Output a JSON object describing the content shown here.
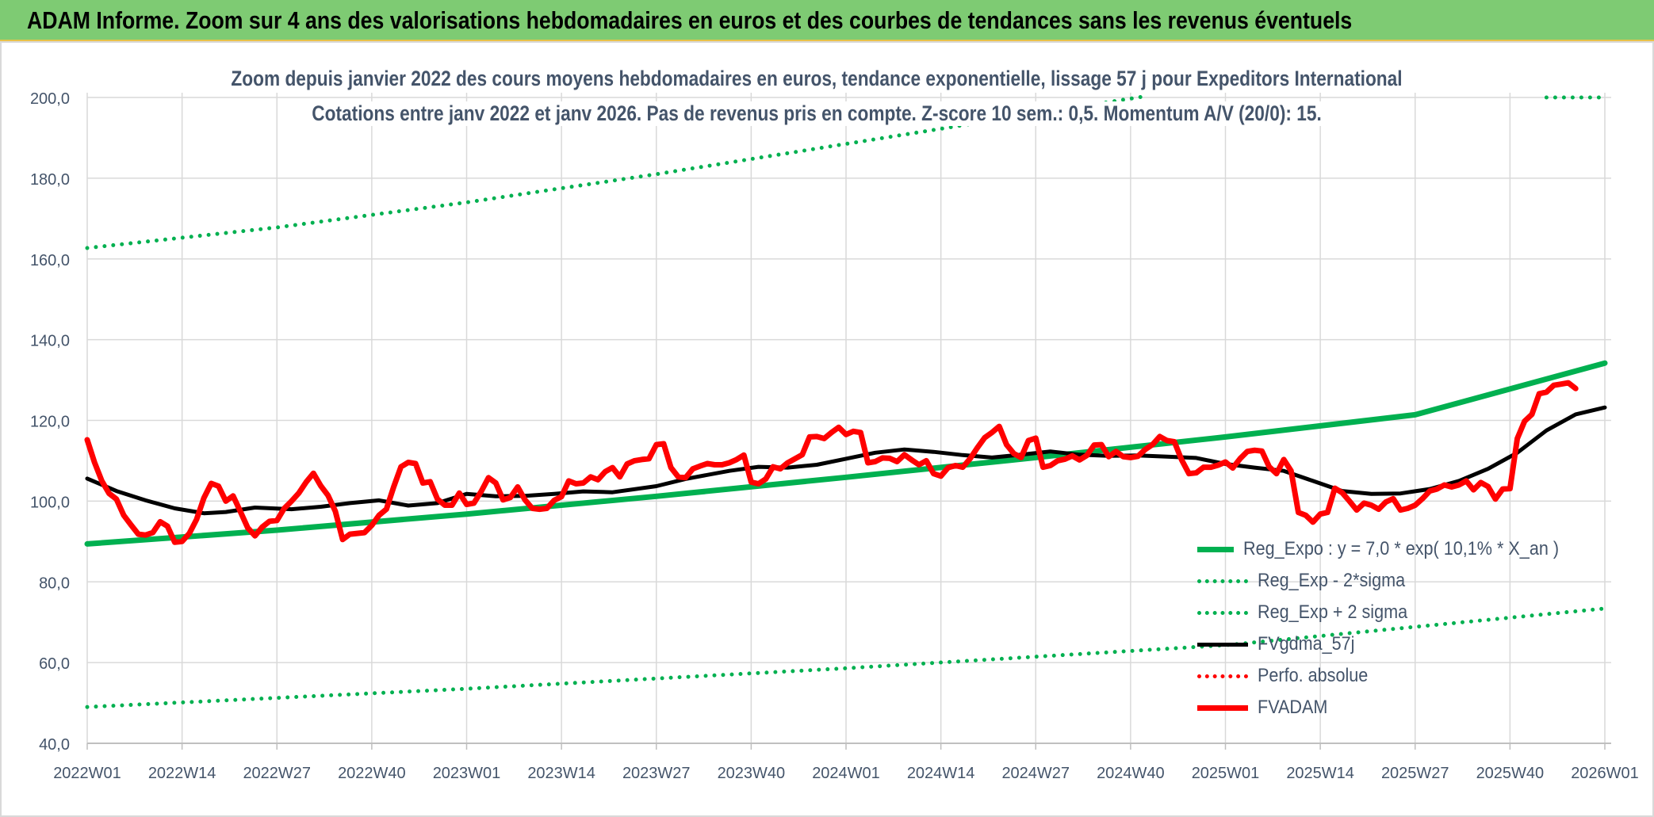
{
  "banner": {
    "title": "ADAM Informe. Zoom sur 4 ans des valorisations hebdomadaires en euros et des courbes de tendances sans les revenus éventuels"
  },
  "colors": {
    "banner_bg": "#7ecb73",
    "reg_expo": "#00b050",
    "fvgdma": "#000000",
    "perfo": "#ff0000",
    "fvadam": "#ff0000",
    "axis_text": "#44546a",
    "grid": "#d9d9d9"
  },
  "chart_data": {
    "type": "line",
    "title": "Zoom depuis janvier 2022 des cours moyens hebdomadaires en euros, tendance exponentielle, lissage 57 j pour Expeditors International",
    "subtitle": "Cotations entre janv 2022 et janv 2026. Pas de revenus pris en compte. Z-score 10 sem.: 0,5. Momentum A/V (20/0): 15.",
    "x_tick_labels": [
      "2022W01",
      "2022W14",
      "2022W27",
      "2022W40",
      "2023W01",
      "2023W14",
      "2023W27",
      "2023W40",
      "2024W01",
      "2024W14",
      "2024W27",
      "2024W40",
      "2025W01",
      "2025W14",
      "2025W27",
      "2025W40",
      "2026W01"
    ],
    "y_tick_labels": [
      "40,0",
      "60,0",
      "80,0",
      "100,0",
      "120,0",
      "140,0",
      "160,0",
      "180,0",
      "200,0"
    ],
    "ylim": [
      40,
      200
    ],
    "x_range_weeks": [
      0,
      208
    ],
    "grid": true,
    "legend_position": "bottom-right",
    "series": [
      {
        "name": "Reg_Expo : y = 7,0 * exp( 10,1% *  X_an )",
        "style": "solid-thick",
        "color": "#00b050",
        "points": [
          [
            0,
            89.4
          ],
          [
            26,
            92.8
          ],
          [
            52,
            96.8
          ],
          [
            78,
            101.2
          ],
          [
            104,
            105.9
          ],
          [
            130,
            110.8
          ],
          [
            156,
            115.9
          ],
          [
            182,
            121.4
          ],
          [
            208,
            134.2
          ]
        ]
      },
      {
        "name": "Reg_Exp - 2*sigma",
        "style": "dotted",
        "color": "#00b050",
        "points": [
          [
            0,
            49.0
          ],
          [
            52,
            53.5
          ],
          [
            104,
            58.6
          ],
          [
            156,
            64.3
          ],
          [
            208,
            73.4
          ]
        ]
      },
      {
        "name": "Reg_Exp + 2 sigma",
        "style": "dotted",
        "color": "#00b050",
        "points": [
          [
            0,
            162.7
          ],
          [
            26,
            167.8
          ],
          [
            52,
            174.0
          ],
          [
            78,
            181.0
          ],
          [
            104,
            188.5
          ],
          [
            130,
            196.0
          ],
          [
            145,
            200.5
          ]
        ],
        "points_right": [
          [
            200,
            200.0
          ],
          [
            208,
            200.0
          ]
        ]
      },
      {
        "name": "FVgdma_57j",
        "style": "solid",
        "color": "#000000",
        "points": [
          [
            0,
            105.6
          ],
          [
            4,
            102.5
          ],
          [
            8,
            100.2
          ],
          [
            12,
            98.2
          ],
          [
            16,
            97.0
          ],
          [
            19,
            97.3
          ],
          [
            23,
            98.4
          ],
          [
            28,
            98.0
          ],
          [
            32,
            98.6
          ],
          [
            36,
            99.5
          ],
          [
            40,
            100.2
          ],
          [
            44,
            98.9
          ],
          [
            48,
            99.5
          ],
          [
            52,
            101.8
          ],
          [
            56,
            101.2
          ],
          [
            60,
            101.3
          ],
          [
            64,
            101.8
          ],
          [
            68,
            102.4
          ],
          [
            72,
            102.2
          ],
          [
            78,
            103.7
          ],
          [
            82,
            105.5
          ],
          [
            88,
            107.5
          ],
          [
            92,
            108.5
          ],
          [
            96,
            108.3
          ],
          [
            100,
            109.0
          ],
          [
            104,
            110.5
          ],
          [
            108,
            112.0
          ],
          [
            112,
            112.8
          ],
          [
            116,
            112.2
          ],
          [
            120,
            111.4
          ],
          [
            124,
            110.8
          ],
          [
            128,
            111.5
          ],
          [
            132,
            112.3
          ],
          [
            136,
            111.5
          ],
          [
            140,
            111.2
          ],
          [
            144,
            111.3
          ],
          [
            148,
            111.0
          ],
          [
            152,
            110.7
          ],
          [
            156,
            109.2
          ],
          [
            160,
            108.3
          ],
          [
            164,
            107.5
          ],
          [
            168,
            105.0
          ],
          [
            172,
            102.5
          ],
          [
            176,
            101.8
          ],
          [
            180,
            101.9
          ],
          [
            184,
            103.0
          ],
          [
            188,
            105.0
          ],
          [
            192,
            108.0
          ],
          [
            196,
            112.0
          ],
          [
            200,
            117.5
          ],
          [
            204,
            121.5
          ],
          [
            208,
            123.2
          ]
        ]
      },
      {
        "name": "Perfo. absolue",
        "style": "dotted",
        "color": "#ff0000",
        "points": []
      },
      {
        "name": "FVADAM",
        "style": "solid-thick",
        "color": "#ff0000",
        "points": [
          [
            0,
            115.2
          ],
          [
            1,
            109.6
          ],
          [
            2,
            105.0
          ],
          [
            3,
            101.9
          ],
          [
            4,
            100.5
          ],
          [
            5,
            96.5
          ],
          [
            6,
            94.1
          ],
          [
            7,
            91.8
          ],
          [
            8,
            91.6
          ],
          [
            9,
            92.2
          ],
          [
            10,
            94.9
          ],
          [
            11,
            93.8
          ],
          [
            12,
            89.8
          ],
          [
            13,
            90.0
          ],
          [
            14,
            92.0
          ],
          [
            15,
            95.5
          ],
          [
            16,
            100.8
          ],
          [
            17,
            104.4
          ],
          [
            18,
            103.7
          ],
          [
            19,
            100.0
          ],
          [
            20,
            101.3
          ],
          [
            21,
            97.4
          ],
          [
            22,
            93.4
          ],
          [
            23,
            91.4
          ],
          [
            24,
            93.6
          ],
          [
            25,
            95.0
          ],
          [
            26,
            95.2
          ],
          [
            27,
            98.2
          ],
          [
            28,
            100.0
          ],
          [
            29,
            102.0
          ],
          [
            30,
            104.7
          ],
          [
            31,
            106.9
          ],
          [
            32,
            103.8
          ],
          [
            33,
            101.4
          ],
          [
            34,
            97.5
          ],
          [
            35,
            90.5
          ],
          [
            36,
            91.8
          ],
          [
            37,
            92.0
          ],
          [
            38,
            92.2
          ],
          [
            39,
            94.0
          ],
          [
            40,
            96.5
          ],
          [
            41,
            98.0
          ],
          [
            42,
            103.5
          ],
          [
            43,
            108.5
          ],
          [
            44,
            109.6
          ],
          [
            45,
            109.3
          ],
          [
            46,
            104.5
          ],
          [
            47,
            104.8
          ],
          [
            48,
            100.5
          ],
          [
            49,
            99.0
          ],
          [
            50,
            99.0
          ],
          [
            51,
            102.0
          ],
          [
            52,
            99.2
          ],
          [
            53,
            99.5
          ],
          [
            54,
            102.4
          ],
          [
            55,
            105.8
          ],
          [
            56,
            104.5
          ],
          [
            57,
            100.3
          ],
          [
            58,
            100.9
          ],
          [
            59,
            103.5
          ],
          [
            60,
            100.3
          ],
          [
            61,
            98.2
          ],
          [
            62,
            98.0
          ],
          [
            63,
            98.2
          ],
          [
            64,
            100.2
          ],
          [
            65,
            101.1
          ],
          [
            66,
            105.0
          ],
          [
            67,
            104.3
          ],
          [
            68,
            104.5
          ],
          [
            69,
            106.0
          ],
          [
            70,
            105.3
          ],
          [
            71,
            107.3
          ],
          [
            72,
            108.3
          ],
          [
            73,
            106.0
          ],
          [
            74,
            109.2
          ],
          [
            75,
            110.0
          ],
          [
            76,
            110.3
          ],
          [
            77,
            110.5
          ],
          [
            78,
            114.0
          ],
          [
            79,
            114.2
          ],
          [
            80,
            108.3
          ],
          [
            81,
            106.0
          ],
          [
            82,
            105.8
          ],
          [
            83,
            108.0
          ],
          [
            84,
            108.7
          ],
          [
            85,
            109.3
          ],
          [
            86,
            109.0
          ],
          [
            87,
            109.0
          ],
          [
            88,
            109.5
          ],
          [
            89,
            110.3
          ],
          [
            90,
            111.4
          ],
          [
            91,
            104.7
          ],
          [
            92,
            104.3
          ],
          [
            93,
            105.5
          ],
          [
            94,
            108.5
          ],
          [
            95,
            108.0
          ],
          [
            96,
            109.5
          ],
          [
            97,
            110.5
          ],
          [
            98,
            111.5
          ],
          [
            99,
            115.9
          ],
          [
            100,
            116.0
          ],
          [
            101,
            115.5
          ],
          [
            102,
            117.0
          ],
          [
            103,
            118.3
          ],
          [
            104,
            116.5
          ],
          [
            105,
            117.3
          ],
          [
            106,
            117.0
          ],
          [
            107,
            109.5
          ],
          [
            108,
            109.8
          ],
          [
            109,
            110.7
          ],
          [
            110,
            110.6
          ],
          [
            111,
            109.8
          ],
          [
            112,
            111.5
          ],
          [
            113,
            110.2
          ],
          [
            114,
            109.0
          ],
          [
            115,
            110.0
          ],
          [
            116,
            106.8
          ],
          [
            117,
            106.2
          ],
          [
            118,
            108.3
          ],
          [
            119,
            108.8
          ],
          [
            120,
            108.4
          ],
          [
            121,
            110.5
          ],
          [
            122,
            113.2
          ],
          [
            123,
            115.7
          ],
          [
            124,
            117.0
          ],
          [
            125,
            118.5
          ],
          [
            126,
            114.0
          ],
          [
            127,
            111.8
          ],
          [
            128,
            110.8
          ],
          [
            129,
            115.0
          ],
          [
            130,
            115.6
          ],
          [
            131,
            108.4
          ],
          [
            132,
            108.8
          ],
          [
            133,
            110.0
          ],
          [
            134,
            110.4
          ],
          [
            135,
            111.2
          ],
          [
            136,
            110.2
          ],
          [
            137,
            111.3
          ],
          [
            138,
            113.9
          ],
          [
            139,
            114.0
          ],
          [
            140,
            111.0
          ],
          [
            141,
            112.3
          ],
          [
            142,
            111.0
          ],
          [
            143,
            110.8
          ],
          [
            144,
            111.1
          ],
          [
            145,
            112.8
          ],
          [
            146,
            114.0
          ],
          [
            147,
            116.0
          ],
          [
            148,
            115.0
          ],
          [
            149,
            114.7
          ],
          [
            150,
            110.2
          ],
          [
            151,
            106.8
          ],
          [
            152,
            107.0
          ],
          [
            153,
            108.4
          ],
          [
            154,
            108.4
          ],
          [
            155,
            108.9
          ],
          [
            156,
            109.7
          ],
          [
            157,
            108.2
          ],
          [
            158,
            110.5
          ],
          [
            159,
            112.3
          ],
          [
            160,
            112.6
          ],
          [
            161,
            112.4
          ],
          [
            162,
            108.5
          ],
          [
            163,
            106.8
          ],
          [
            164,
            110.3
          ],
          [
            165,
            107.5
          ],
          [
            166,
            97.2
          ],
          [
            167,
            96.5
          ],
          [
            168,
            94.8
          ],
          [
            169,
            96.8
          ],
          [
            170,
            97.2
          ],
          [
            171,
            103.2
          ],
          [
            172,
            102.1
          ],
          [
            173,
            100.0
          ],
          [
            174,
            97.8
          ],
          [
            175,
            99.5
          ],
          [
            176,
            99.0
          ],
          [
            177,
            98.0
          ],
          [
            178,
            99.8
          ],
          [
            179,
            100.6
          ],
          [
            180,
            97.8
          ],
          [
            181,
            98.2
          ],
          [
            182,
            99.0
          ],
          [
            183,
            100.6
          ],
          [
            184,
            102.5
          ],
          [
            185,
            103.0
          ],
          [
            186,
            104.0
          ],
          [
            187,
            103.5
          ],
          [
            188,
            104.0
          ],
          [
            189,
            105.0
          ],
          [
            190,
            102.8
          ],
          [
            191,
            104.6
          ],
          [
            192,
            103.6
          ],
          [
            193,
            100.5
          ],
          [
            194,
            103.0
          ],
          [
            195,
            103.1
          ],
          [
            196,
            115.5
          ],
          [
            197,
            119.8
          ],
          [
            198,
            121.5
          ],
          [
            199,
            126.6
          ],
          [
            200,
            127.0
          ],
          [
            201,
            128.7
          ],
          [
            202,
            129.0
          ],
          [
            203,
            129.3
          ],
          [
            204,
            127.9
          ]
        ]
      }
    ]
  }
}
